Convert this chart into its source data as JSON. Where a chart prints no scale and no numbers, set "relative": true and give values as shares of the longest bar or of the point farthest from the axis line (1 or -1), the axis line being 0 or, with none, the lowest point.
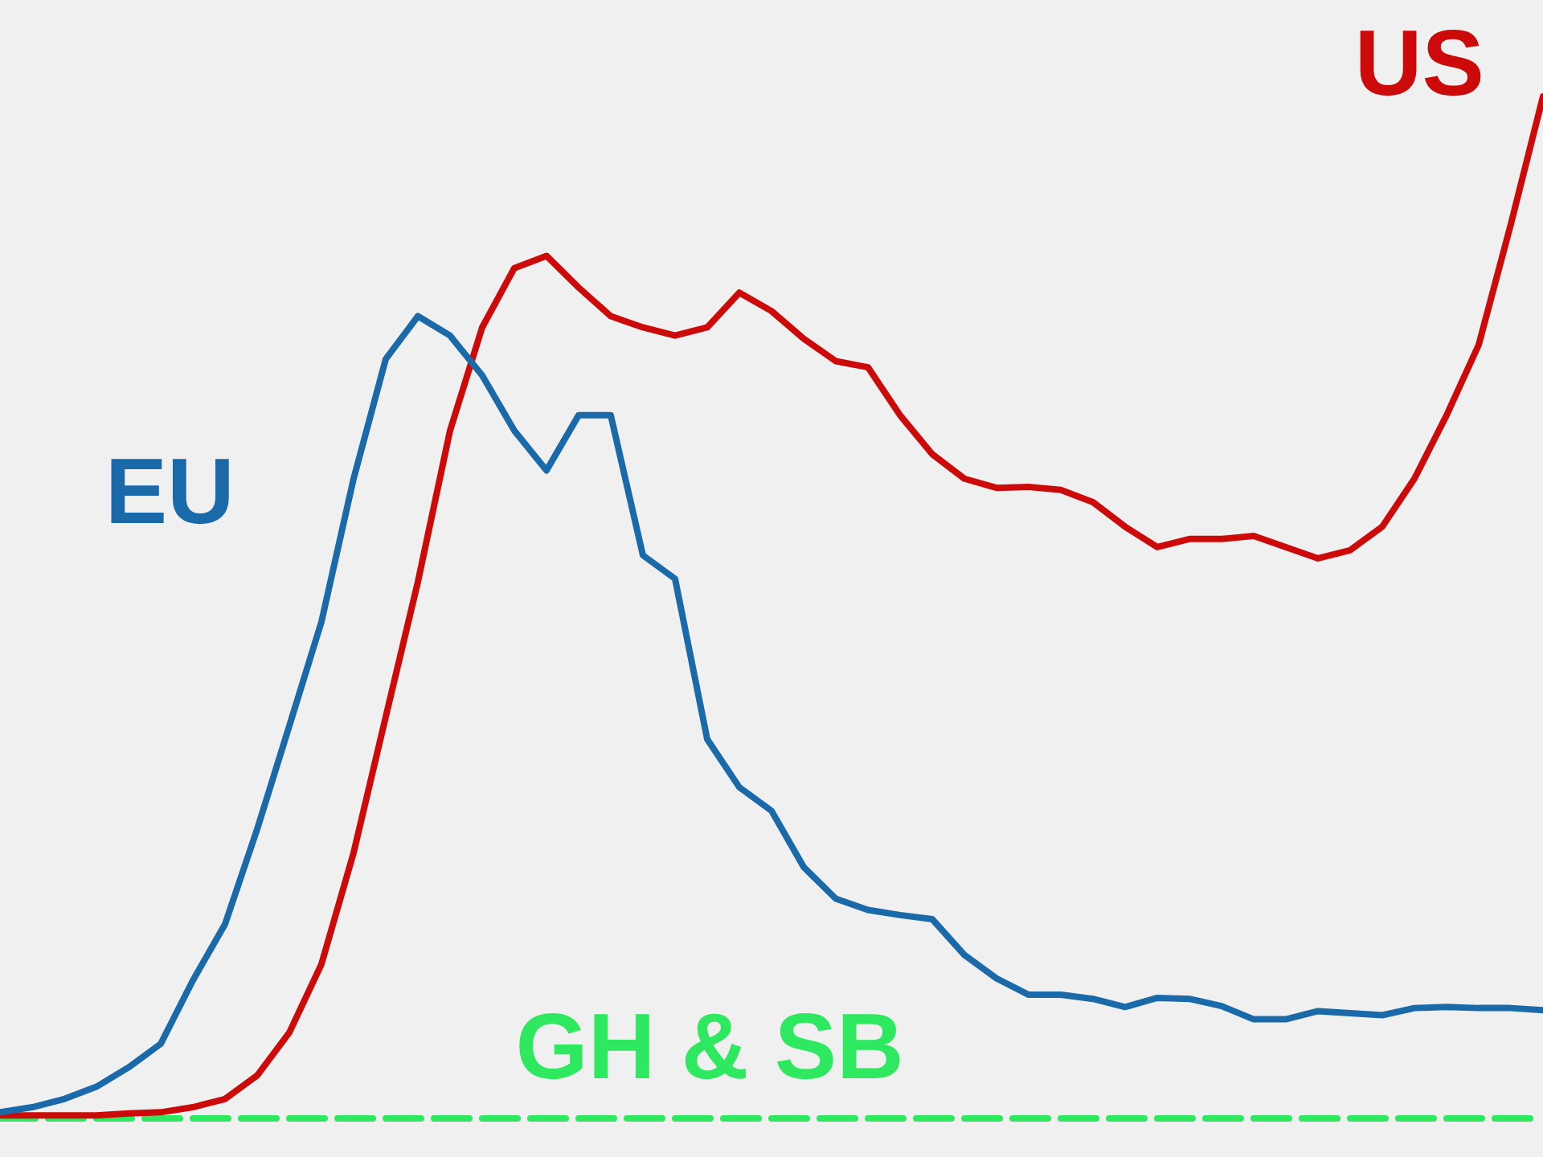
{
  "chart_data": {
    "type": "line",
    "relative": true,
    "legend": false,
    "categories": [
      null,
      null,
      null,
      null,
      null,
      null,
      null,
      null,
      null,
      null,
      null,
      null,
      null,
      null,
      null,
      null,
      null,
      null,
      null,
      null,
      null,
      null,
      null,
      null,
      null,
      null,
      null,
      null,
      null,
      null,
      null,
      null,
      null,
      null,
      null,
      null,
      null,
      null,
      null,
      null,
      null,
      null,
      null,
      null,
      null,
      null,
      null,
      null,
      null
    ],
    "series": [
      {
        "name": "EU",
        "color": "#1a6aaa",
        "values": [
          0.006,
          0.011,
          0.019,
          0.031,
          0.05,
          0.073,
          0.135,
          0.19,
          0.283,
          0.384,
          0.486,
          0.626,
          0.743,
          0.785,
          0.766,
          0.727,
          0.673,
          0.634,
          0.688,
          0.688,
          0.551,
          0.528,
          0.371,
          0.324,
          0.301,
          0.246,
          0.215,
          0.204,
          0.199,
          0.195,
          0.16,
          0.137,
          0.121,
          0.121,
          0.117,
          0.109,
          0.118,
          0.117,
          0.11,
          0.097,
          0.097,
          0.105,
          0.103,
          0.101,
          0.108,
          0.109,
          0.108,
          0.108,
          0.106
        ]
      },
      {
        "name": "US",
        "color": "#cc0a0a",
        "values": [
          0.003,
          0.003,
          0.003,
          0.003,
          0.005,
          0.006,
          0.011,
          0.019,
          0.042,
          0.084,
          0.151,
          0.26,
          0.393,
          0.525,
          0.673,
          0.774,
          0.832,
          0.844,
          0.813,
          0.785,
          0.774,
          0.766,
          0.774,
          0.808,
          0.79,
          0.763,
          0.741,
          0.735,
          0.688,
          0.65,
          0.626,
          0.617,
          0.618,
          0.615,
          0.603,
          0.579,
          0.559,
          0.567,
          0.567,
          0.57,
          0.559,
          0.548,
          0.556,
          0.579,
          0.626,
          0.688,
          0.757,
          0.875,
          1
        ]
      },
      {
        "name": "GH & SB",
        "color": "#2ee860",
        "line_style": "dashed",
        "values": [
          0,
          0,
          0,
          0,
          0,
          0,
          0,
          0,
          0,
          0,
          0,
          0,
          0,
          0,
          0,
          0,
          0,
          0,
          0,
          0,
          0,
          0,
          0,
          0,
          0,
          0,
          0,
          0,
          0,
          0,
          0,
          0,
          0,
          0,
          0,
          0,
          0,
          0,
          0,
          0,
          0,
          0,
          0,
          0,
          0,
          0,
          0,
          0,
          0
        ]
      }
    ]
  }
}
